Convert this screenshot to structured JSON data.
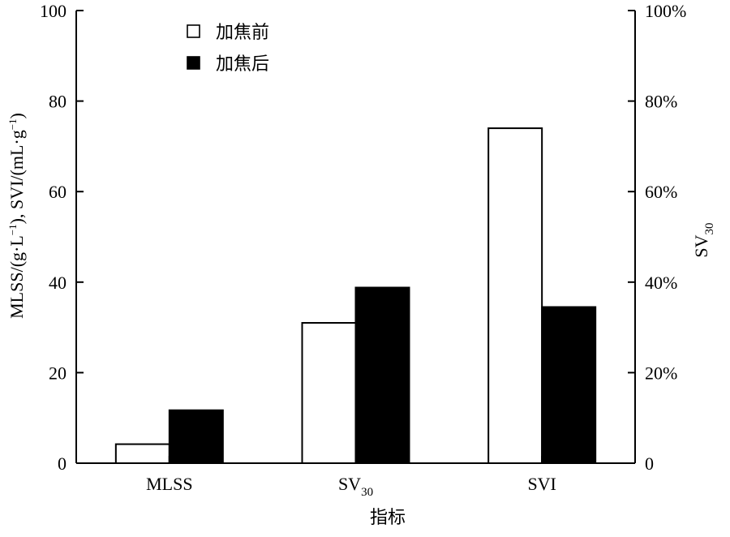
{
  "chart_data": {
    "type": "bar",
    "categories": [
      "MLSS",
      "SV30",
      "SVI"
    ],
    "category_labels": [
      {
        "base": "MLSS",
        "sub": ""
      },
      {
        "base": "SV",
        "sub": "30"
      },
      {
        "base": "SVI",
        "sub": ""
      }
    ],
    "series": [
      {
        "name": "加焦前",
        "values": [
          4.2,
          31,
          74
        ],
        "fill": "#ffffff"
      },
      {
        "name": "加焦后",
        "values": [
          11.7,
          38.8,
          34.5
        ],
        "fill": "#000000"
      }
    ],
    "xlabel": "指标",
    "ylabel": "MLSS/(g·L⁻¹), SVI/(mL·g⁻¹)",
    "ylabel_parts": {
      "p1": "MLSS/(g·L",
      "sup1": "−1",
      "p2": "), SVI/(mL·g",
      "sup2": "−1",
      "p3": ")"
    },
    "y2label": {
      "base": "SV",
      "sub": "30"
    },
    "ylim": [
      0,
      100
    ],
    "yticks": [
      0,
      20,
      40,
      60,
      80,
      100
    ],
    "y2ticks": [
      "0",
      "20%",
      "40%",
      "60%",
      "80%",
      "100%"
    ],
    "grid": false,
    "legend_position": "top-left"
  }
}
